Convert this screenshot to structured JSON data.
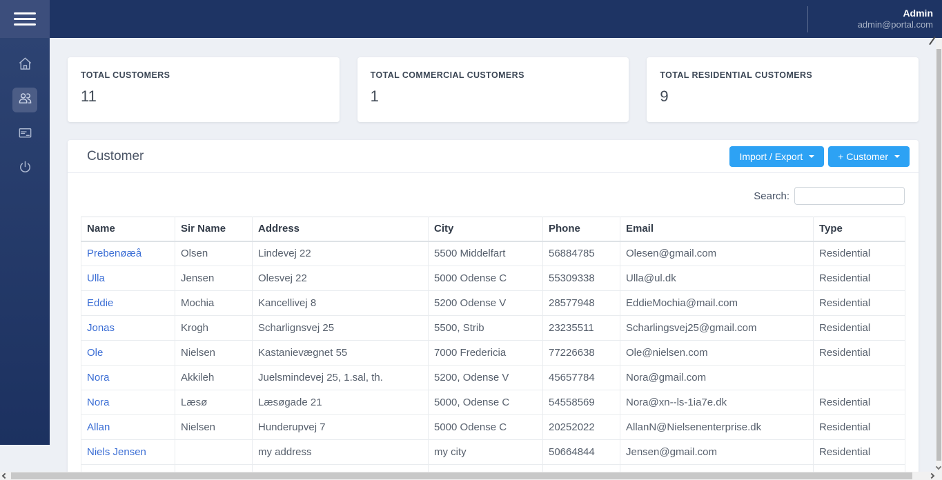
{
  "topbar": {
    "user_name": "Admin",
    "user_email": "admin@portal.com"
  },
  "sidebar": {
    "items": [
      {
        "id": "home",
        "icon": "home-icon",
        "active": false
      },
      {
        "id": "customers",
        "icon": "users-icon",
        "active": true
      },
      {
        "id": "billing",
        "icon": "credit-card-icon",
        "active": false
      },
      {
        "id": "logout",
        "icon": "power-icon",
        "active": false
      }
    ]
  },
  "stats": [
    {
      "label": "TOTAL CUSTOMERS",
      "value": "11"
    },
    {
      "label": "TOTAL COMMERCIAL CUSTOMERS",
      "value": "1"
    },
    {
      "label": "TOTAL RESIDENTIAL CUSTOMERS",
      "value": "9"
    }
  ],
  "panel": {
    "title": "Customer",
    "buttons": {
      "import_export": "Import / Export",
      "add_customer": "+ Customer"
    },
    "search_label": "Search:",
    "search_value": "",
    "table": {
      "columns": [
        "Name",
        "Sir Name",
        "Address",
        "City",
        "Phone",
        "Email",
        "Type"
      ],
      "rows": [
        [
          "Prebenøæå",
          "Olsen",
          "Lindevej 22",
          "5500 Middelfart",
          "56884785",
          "Olesen@gmail.com",
          "Residential"
        ],
        [
          "Ulla",
          "Jensen",
          "Olesvej 22",
          "5000 Odense C",
          "55309338",
          "Ulla@ul.dk",
          "Residential"
        ],
        [
          "Eddie",
          "Mochia",
          "Kancellivej 8",
          "5200 Odense V",
          "28577948",
          "EddieMochia@mail.com",
          "Residential"
        ],
        [
          "Jonas",
          "Krogh",
          "Scharlignsvej 25",
          "5500, Strib",
          "23235511",
          "Scharlingsvej25@gmail.com",
          "Residential"
        ],
        [
          "Ole",
          "Nielsen",
          "Kastanievægnet 55",
          "7000 Fredericia",
          "77226638",
          "Ole@nielsen.com",
          "Residential"
        ],
        [
          "Nora",
          "Akkileh",
          "Juelsmindevej 25, 1.sal, th.",
          "5200, Odense V",
          "45657784",
          "Nora@gmail.com",
          ""
        ],
        [
          "Nora",
          "Læsø",
          "Læsøgade 21",
          "5000, Odense C",
          "54558569",
          "Nora@xn--ls-1ia7e.dk",
          "Residential"
        ],
        [
          "Allan",
          "Nielsen",
          "Hunderupvej 7",
          "5000 Odense C",
          "20252022",
          "AllanN@Nielsenenterprise.dk",
          "Residential"
        ],
        [
          "Niels Jensen",
          "",
          "my address",
          "my city",
          "50664844",
          "Jensen@gmail.com",
          "Residential"
        ],
        [
          "",
          "",
          "",
          "",
          "",
          "",
          ""
        ]
      ]
    }
  },
  "colors": {
    "topbar_bg": "#1e3464",
    "menu_block_bg": "#3c4e7c",
    "sidebar_top": "#2d4372",
    "sidebar_bottom": "#1c3160",
    "accent_blue": "#2da2f4",
    "link_blue": "#3b6ed5",
    "content_bg": "#edf0f5"
  }
}
